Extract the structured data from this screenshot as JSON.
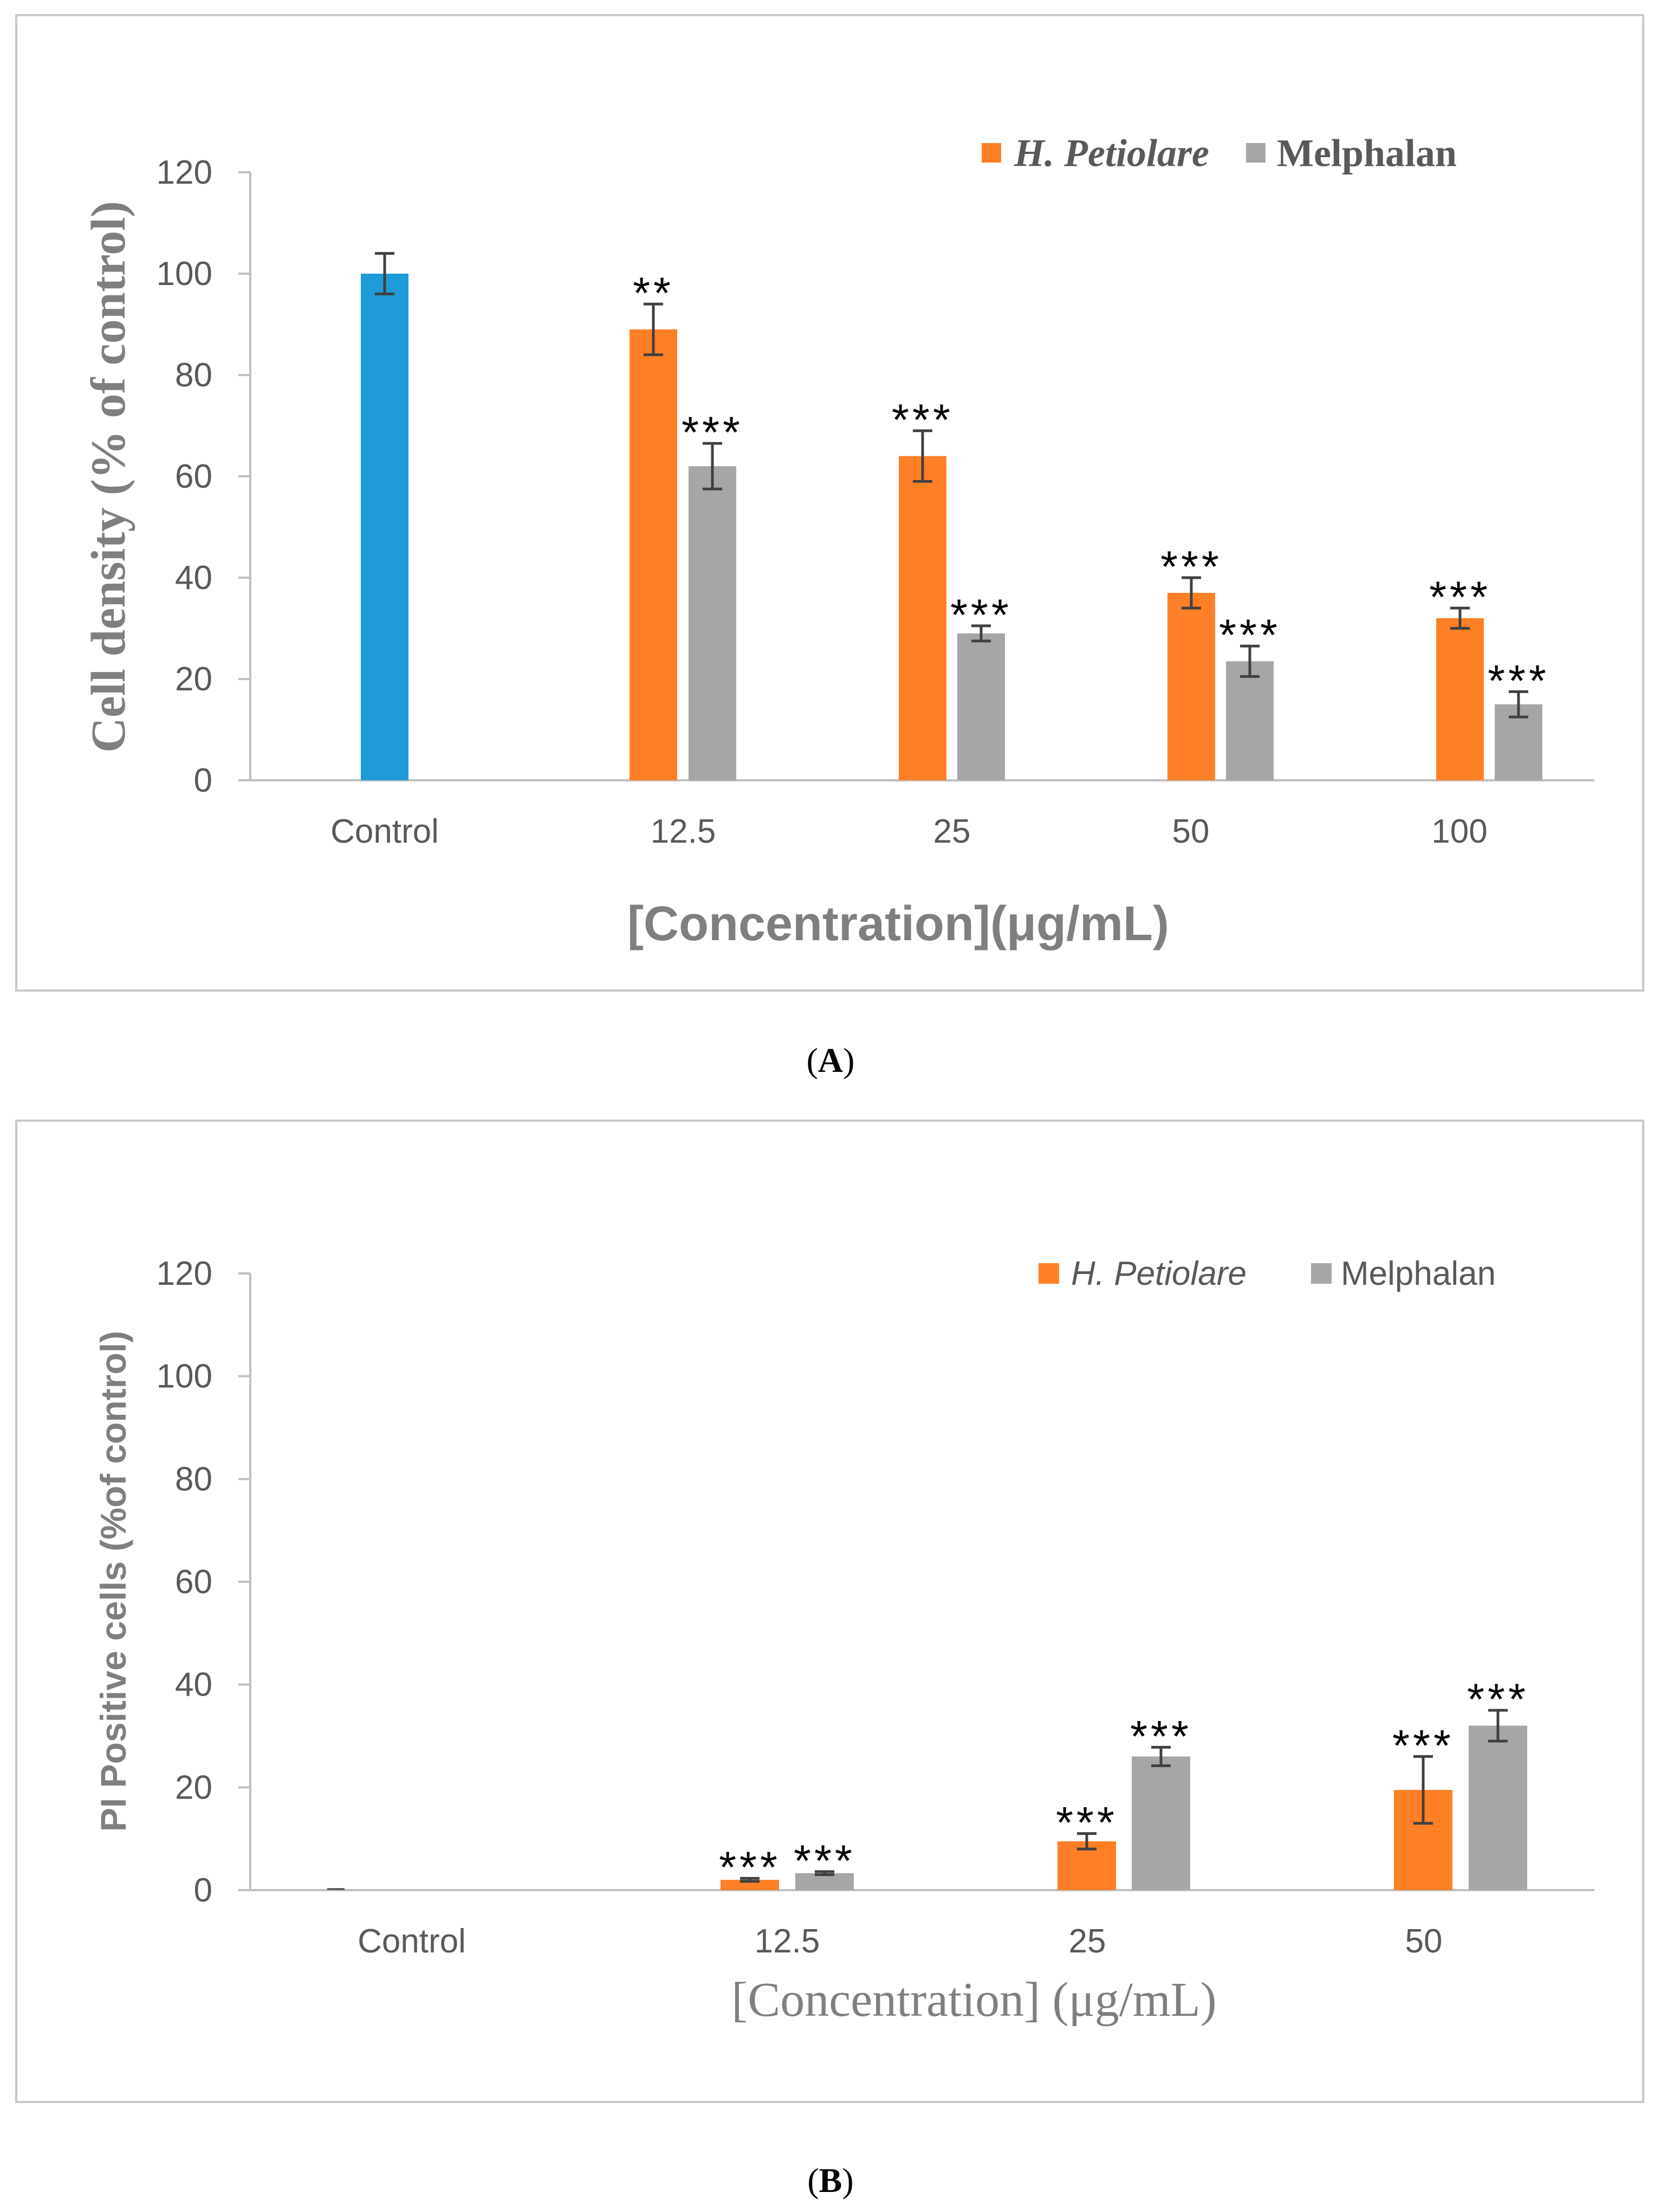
{
  "colors": {
    "control": "#1F9BD9",
    "h_petiolare": "#FF7F27",
    "melphalan": "#A6A6A6",
    "axis": "#BFBFBF",
    "tick_text": "#595959",
    "title_text": "#7F7F7F",
    "frame": "#C8C8C8",
    "error_bar": "#404040"
  },
  "chart_data": [
    {
      "id": "A",
      "type": "bar",
      "panel_label": "A",
      "xlabel": "[Concentration](μg/mL)",
      "ylabel": "Cell density (% of control)",
      "ylim": [
        0,
        120
      ],
      "yticks": [
        0,
        20,
        40,
        60,
        80,
        100,
        120
      ],
      "categories": [
        "Control",
        "12.5",
        "25",
        "50",
        "100"
      ],
      "legend_position": "top-right",
      "series": [
        {
          "name": "Control",
          "color_key": "control",
          "in_legend": false,
          "values": [
            100,
            null,
            null,
            null,
            null
          ],
          "errors": [
            4,
            null,
            null,
            null,
            null
          ],
          "annotations": [
            "",
            "",
            "",
            "",
            ""
          ]
        },
        {
          "name": "H. Petiolare",
          "color_key": "h_petiolare",
          "in_legend": true,
          "italic": true,
          "values": [
            null,
            89,
            64,
            37,
            32
          ],
          "errors": [
            null,
            5,
            5,
            3,
            2
          ],
          "annotations": [
            "",
            "**",
            "***",
            "***",
            "***"
          ]
        },
        {
          "name": "Melphalan",
          "color_key": "melphalan",
          "in_legend": true,
          "values": [
            null,
            62,
            29,
            23.5,
            15
          ],
          "errors": [
            null,
            4.5,
            1.5,
            3,
            2.5
          ],
          "annotations": [
            "",
            "***",
            "***",
            "***",
            "***"
          ]
        }
      ]
    },
    {
      "id": "B",
      "type": "bar",
      "panel_label": "B",
      "xlabel": "[Concentration] (μg/mL)",
      "ylabel": "PI Positive cells (%of control)",
      "ylim": [
        0,
        120
      ],
      "yticks": [
        0,
        20,
        40,
        60,
        80,
        100,
        120
      ],
      "categories": [
        "Control",
        "12.5",
        "25",
        "50"
      ],
      "legend_position": "top-right",
      "series": [
        {
          "name": "H. Petiolare",
          "color_key": "h_petiolare",
          "in_legend": true,
          "italic": true,
          "values": [
            0,
            2,
            9.5,
            19.5
          ],
          "errors": [
            0,
            0.3,
            1.5,
            6.5
          ],
          "annotations": [
            "",
            "***",
            "***",
            "***"
          ]
        },
        {
          "name": "Melphalan",
          "color_key": "melphalan",
          "in_legend": true,
          "values": [
            null,
            3.3,
            26,
            32
          ],
          "errors": [
            null,
            0.3,
            1.8,
            3
          ],
          "annotations": [
            "",
            "***",
            "***",
            "***"
          ]
        }
      ]
    }
  ]
}
